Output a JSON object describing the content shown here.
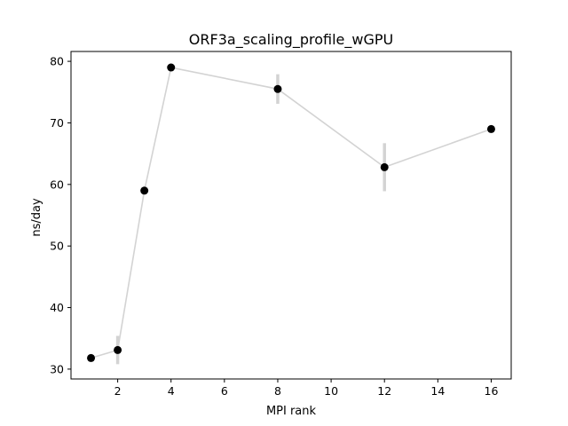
{
  "chart_data": {
    "type": "line",
    "title": "ORF3a_scaling_profile_wGPU",
    "xlabel": "MPI rank",
    "ylabel": "ns/day",
    "xlim": [
      0.25,
      16.75
    ],
    "ylim": [
      28.4,
      81.6
    ],
    "x_ticks": [
      2,
      4,
      6,
      8,
      10,
      12,
      14,
      16
    ],
    "y_ticks": [
      30,
      40,
      50,
      60,
      70,
      80
    ],
    "grid": false,
    "legend": "none",
    "series": [
      {
        "x": [
          1,
          2,
          3,
          4,
          8,
          12,
          16
        ],
        "y": [
          31.8,
          33.1,
          59.0,
          79.0,
          75.5,
          62.8,
          69.0
        ],
        "yerr": [
          0.3,
          2.3,
          0.3,
          0.3,
          2.4,
          3.9,
          0.3
        ],
        "line_color": "#d3d3d3",
        "marker_color": "#000000",
        "errorbar_color": "#d3d3d3"
      }
    ]
  }
}
